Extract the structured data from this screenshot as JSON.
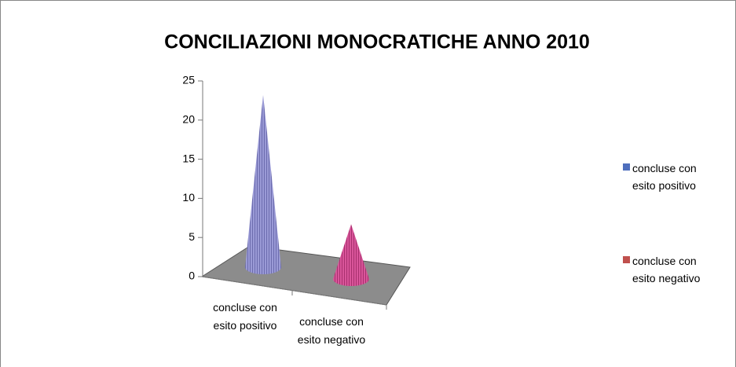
{
  "chart_data": {
    "type": "cone3d",
    "title": "CONCILIAZIONI MONOCRATICHE ANNO 2010",
    "categories": [
      "concluse con esito positivo",
      "concluse con esito negativo"
    ],
    "values": [
      22,
      7
    ],
    "colors": [
      "#4f6fbd",
      "#c0504d"
    ],
    "ylim": [
      0,
      25
    ],
    "yticks": [
      0,
      5,
      10,
      15,
      20,
      25
    ]
  }
}
